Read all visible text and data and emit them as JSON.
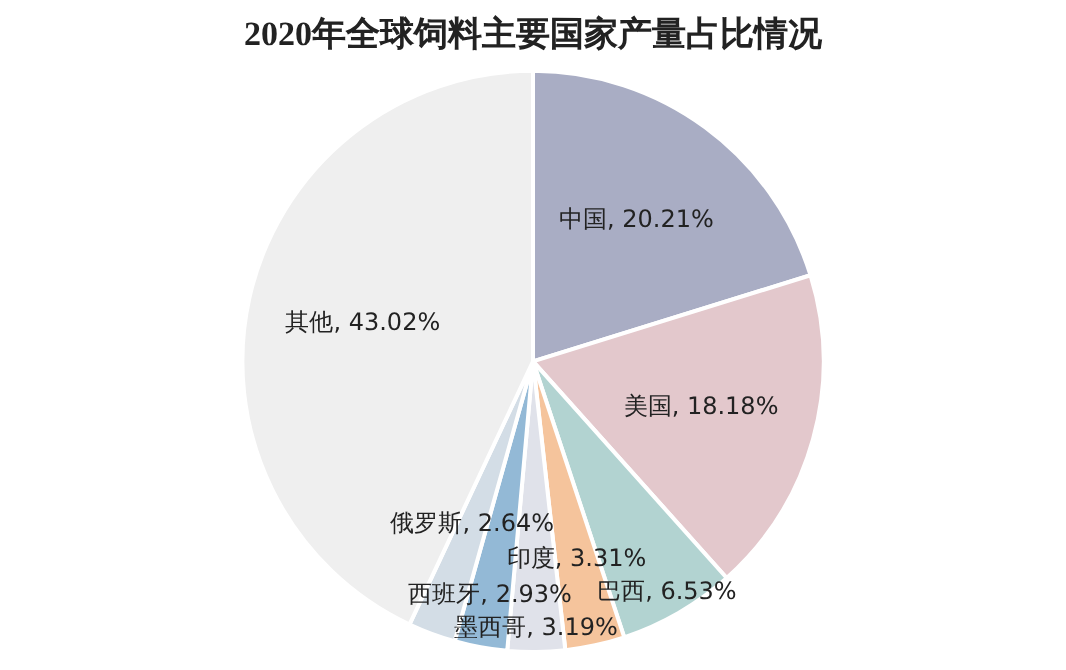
{
  "chart_data": {
    "type": "pie",
    "title": "2020年全球饲料主要国家产量占比情况",
    "categories": [
      "中国",
      "美国",
      "巴西",
      "印度",
      "墨西哥",
      "西班牙",
      "俄罗斯",
      "其他"
    ],
    "values": [
      20.21,
      18.18,
      6.53,
      3.31,
      3.19,
      2.93,
      2.64,
      43.02
    ],
    "colors": [
      "#a9adc4",
      "#e3c8cc",
      "#b2d3d1",
      "#f5c49c",
      "#e0e2ea",
      "#93b9d6",
      "#d3dde6",
      "#efefef"
    ],
    "value_labels": [
      "20.21%",
      "18.18%",
      "6.53%",
      "3.31%",
      "3.19%",
      "2.93%",
      "2.64%",
      "43.02%"
    ],
    "legend": false
  }
}
